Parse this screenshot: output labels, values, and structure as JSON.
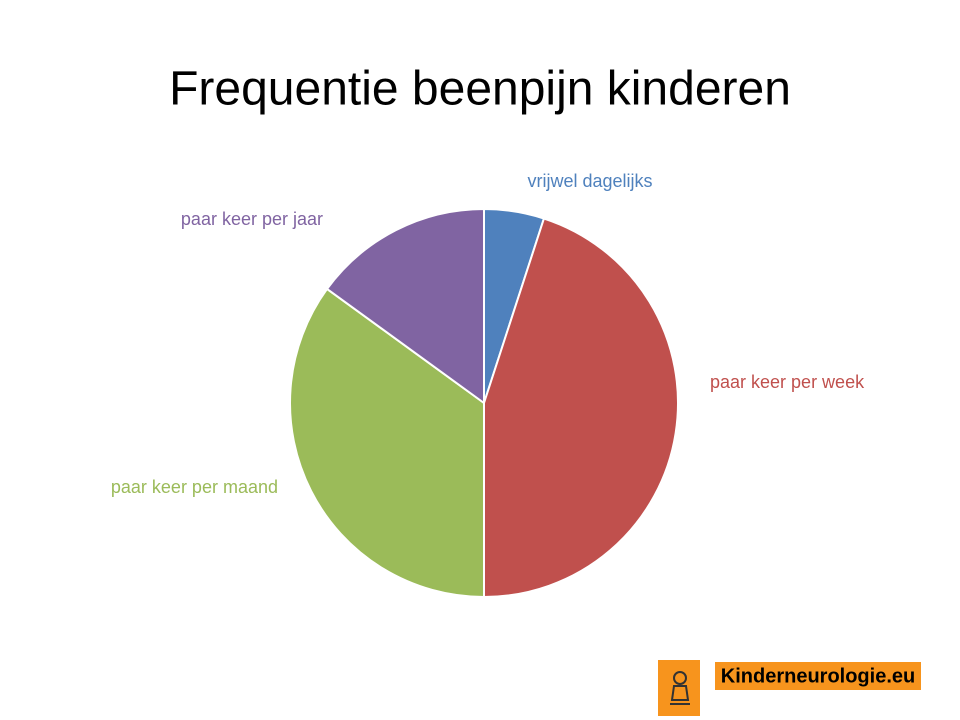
{
  "chart_data": {
    "type": "pie",
    "title": "Frequentie beenpijn kinderen",
    "categories": [
      "vrijwel dagelijks",
      "paar keer per week",
      "paar keer per maand",
      "paar keer per jaar"
    ],
    "values": [
      5,
      45,
      35,
      15
    ],
    "colors": [
      "#4f81bd",
      "#c0504d",
      "#9bbb59",
      "#8064a2"
    ]
  },
  "logo": {
    "text": "Kinderneurologie.eu"
  }
}
